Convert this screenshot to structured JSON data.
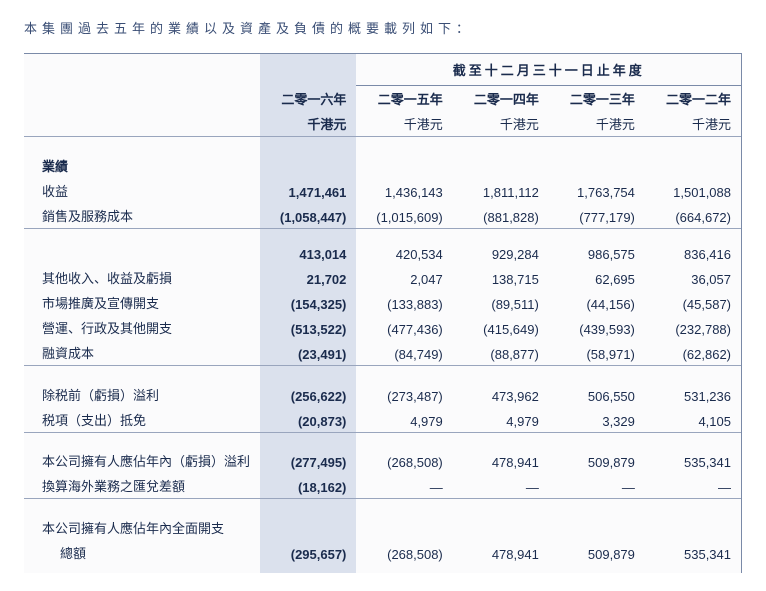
{
  "intro_text": "本集團過去五年的業績以及資產及負債的概要載列如下：",
  "period_header": "截至十二月三十一日止年度",
  "years": {
    "y2016": "二零一六年",
    "y2015": "二零一五年",
    "y2014": "二零一四年",
    "y2013": "二零一三年",
    "y2012": "二零一二年"
  },
  "unit_label": "千港元",
  "sections": {
    "results_header": "業績",
    "revenue": "收益",
    "cost_sales": "銷售及服務成本",
    "other_income": "其他收入、收益及虧損",
    "marketing": "市場推廣及宣傳開支",
    "admin": "營運、行政及其他開支",
    "finance": "融資成本",
    "pbt": "除税前（虧損）溢利",
    "tax": "税項（支出）抵免",
    "attrib": "本公司擁有人應佔年內（虧損）溢利",
    "fx": "換算海外業務之匯兌差額",
    "total_comp_line1": "本公司擁有人應佔年內全面開支",
    "total_comp_line2": "總額"
  },
  "rows": {
    "revenue": {
      "v16": "1,471,461",
      "v15": "1,436,143",
      "v14": "1,811,112",
      "v13": "1,763,754",
      "v12": "1,501,088"
    },
    "cost": {
      "v16": "(1,058,447)",
      "v15": "(1,015,609)",
      "v14": "(881,828)",
      "v13": "(777,179)",
      "v12": "(664,672)"
    },
    "gross": {
      "v16": "413,014",
      "v15": "420,534",
      "v14": "929,284",
      "v13": "986,575",
      "v12": "836,416"
    },
    "other": {
      "v16": "21,702",
      "v15": "2,047",
      "v14": "138,715",
      "v13": "62,695",
      "v12": "36,057"
    },
    "marketing": {
      "v16": "(154,325)",
      "v15": "(133,883)",
      "v14": "(89,511)",
      "v13": "(44,156)",
      "v12": "(45,587)"
    },
    "admin": {
      "v16": "(513,522)",
      "v15": "(477,436)",
      "v14": "(415,649)",
      "v13": "(439,593)",
      "v12": "(232,788)"
    },
    "finance": {
      "v16": "(23,491)",
      "v15": "(84,749)",
      "v14": "(88,877)",
      "v13": "(58,971)",
      "v12": "(62,862)"
    },
    "pbt": {
      "v16": "(256,622)",
      "v15": "(273,487)",
      "v14": "473,962",
      "v13": "506,550",
      "v12": "531,236"
    },
    "tax": {
      "v16": "(20,873)",
      "v15": "4,979",
      "v14": "4,979",
      "v13": "3,329",
      "v12": "4,105"
    },
    "attrib": {
      "v16": "(277,495)",
      "v15": "(268,508)",
      "v14": "478,941",
      "v13": "509,879",
      "v12": "535,341"
    },
    "fx": {
      "v16": "(18,162)",
      "v15": "—",
      "v14": "—",
      "v13": "—",
      "v12": "—"
    },
    "total": {
      "v16": "(295,657)",
      "v15": "(268,508)",
      "v14": "478,941",
      "v13": "509,879",
      "v12": "535,341"
    }
  },
  "styling": {
    "page_background": "#ffffff",
    "text_color": "#1a2b4d",
    "highlight_background": "#dbe1ed",
    "border_color": "#7a8aa8",
    "divider_color": "#99a5bd",
    "intro_color": "#3a4e75",
    "font_size_pt": 13,
    "letter_spacing_intro": 5,
    "highlight_font_weight": "bold",
    "table_type": "financial_summary",
    "highlighted_column_index": 0
  }
}
